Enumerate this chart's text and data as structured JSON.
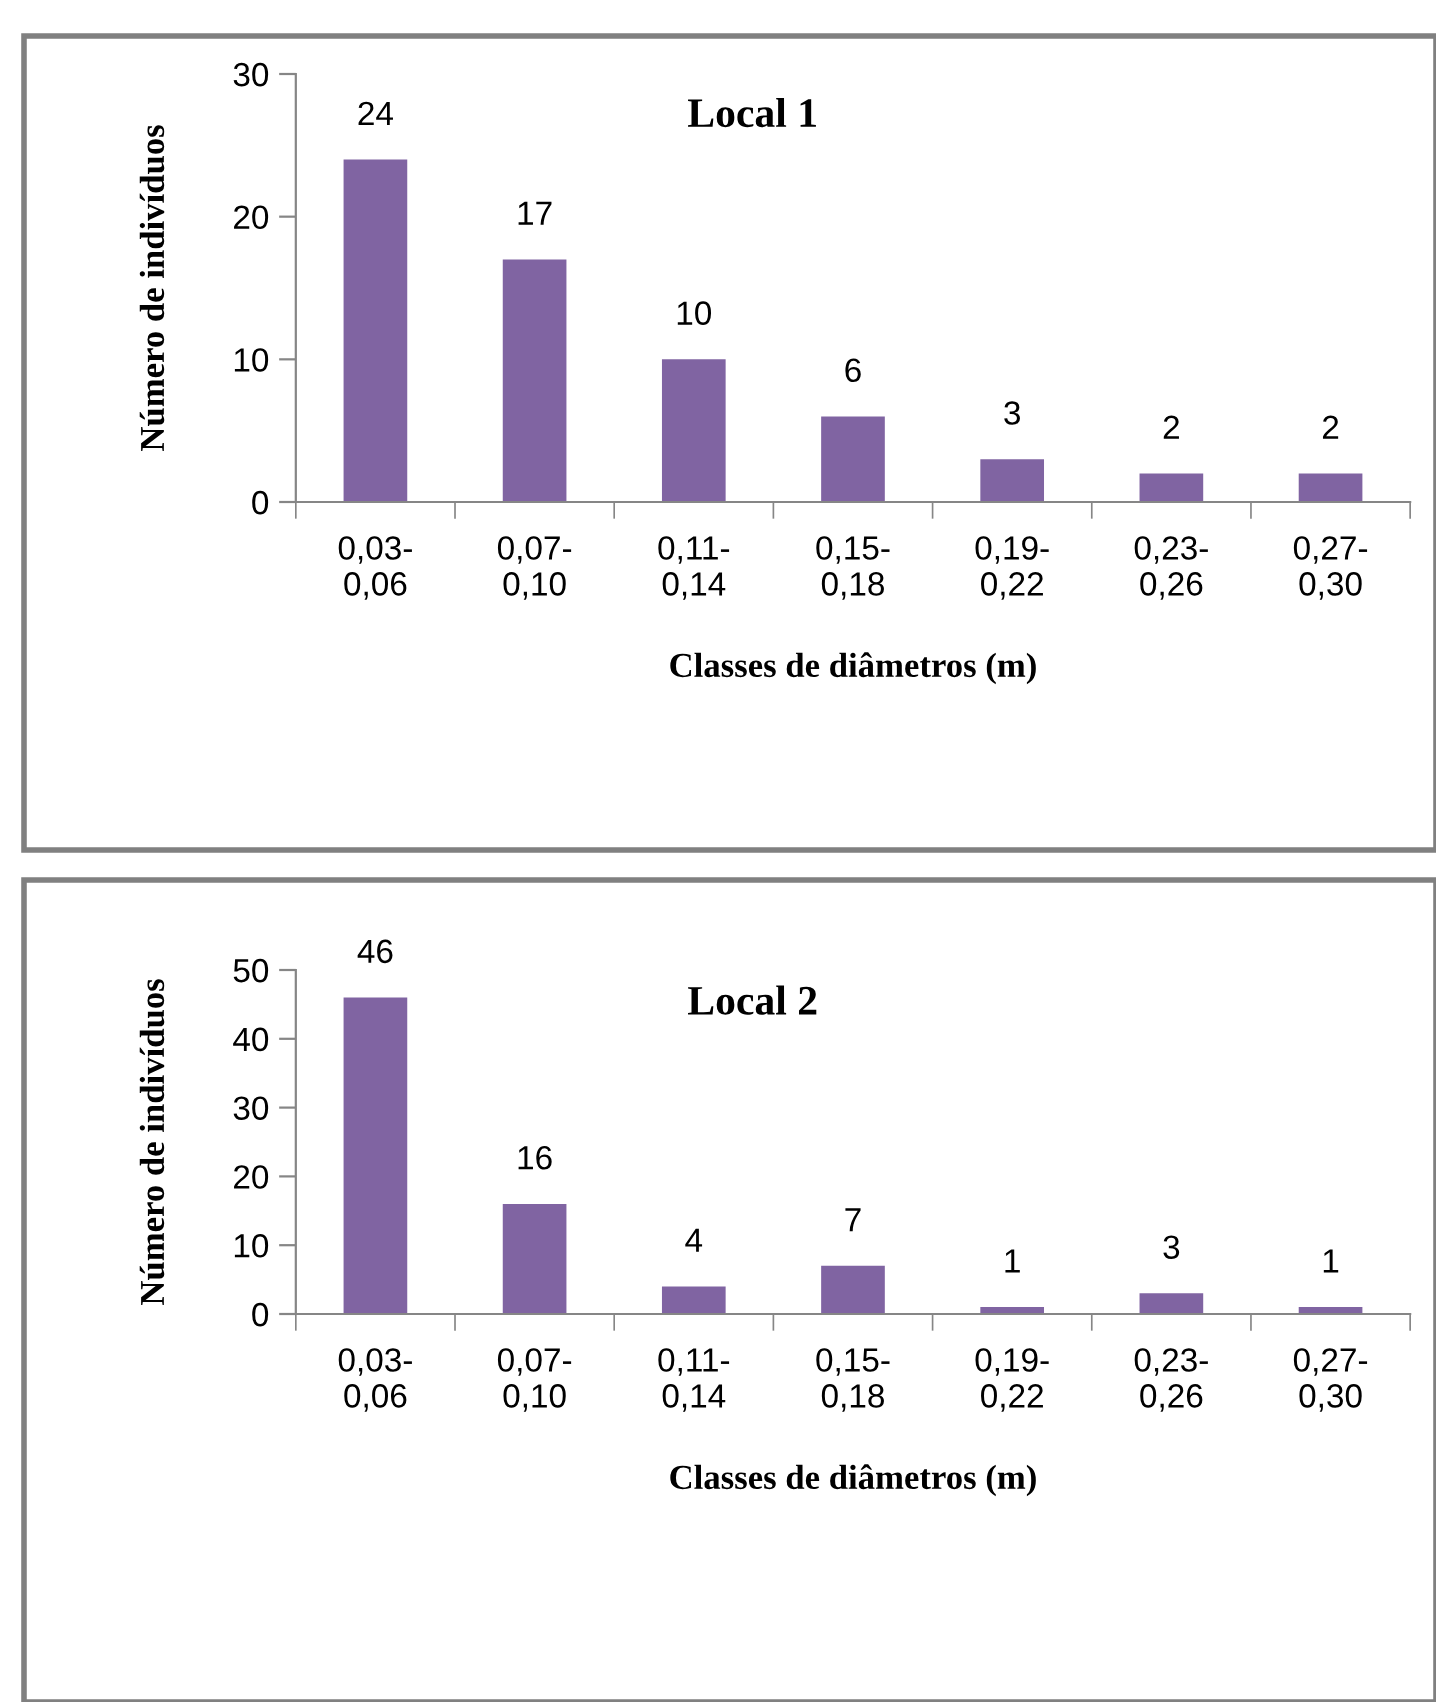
{
  "chart_data": [
    {
      "type": "bar",
      "title": "Local 1",
      "xlabel": "Classes de diâmetros (m)",
      "ylabel": "Número de indivíduos",
      "categories": [
        "0,03-\n0,06",
        "0,07-\n0,10",
        "0,11-\n0,14",
        "0,15-\n0,18",
        "0,19-\n0,22",
        "0,23-\n0,26",
        "0,27-\n0,30"
      ],
      "values": [
        24,
        17,
        10,
        6,
        3,
        2,
        2
      ],
      "color": "#8064a2",
      "ylim": [
        0,
        30
      ],
      "yticks": [
        0,
        10,
        20,
        30
      ],
      "data_labels": true,
      "grid": false,
      "legend": false
    },
    {
      "type": "bar",
      "title": "Local 2",
      "xlabel": "Classes de diâmetros (m)",
      "ylabel": "Número de indivíduos",
      "categories": [
        "0,03-\n0,06",
        "0,07-\n0,10",
        "0,11-\n0,14",
        "0,15-\n0,18",
        "0,19-\n0,22",
        "0,23-\n0,26",
        "0,27-\n0,30"
      ],
      "values": [
        46,
        16,
        4,
        7,
        1,
        3,
        1
      ],
      "color": "#8064a2",
      "ylim": [
        0,
        50
      ],
      "yticks": [
        0,
        10,
        20,
        30,
        40,
        50
      ],
      "data_labels": true,
      "grid": false,
      "legend": false
    }
  ]
}
